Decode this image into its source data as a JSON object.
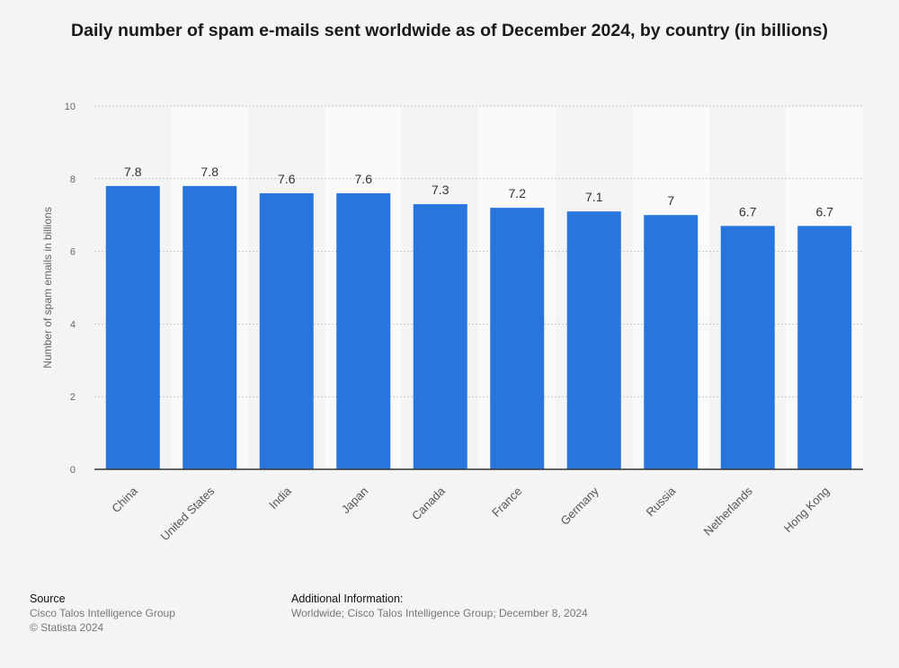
{
  "chart_data": {
    "type": "bar",
    "title": "Daily number of spam e-mails sent worldwide as of December 2024, by country (in billions)",
    "xlabel": "",
    "ylabel": "Number of spam emails in billions",
    "ylim": [
      0,
      10
    ],
    "yticks": [
      0,
      2,
      4,
      6,
      8,
      10
    ],
    "grid": true,
    "categories": [
      "China",
      "United States",
      "India",
      "Japan",
      "Canada",
      "France",
      "Germany",
      "Russia",
      "Netherlands",
      "Hong Kong"
    ],
    "values": [
      7.8,
      7.8,
      7.6,
      7.6,
      7.3,
      7.2,
      7.1,
      7,
      6.7,
      6.7
    ],
    "value_labels": [
      "7.8",
      "7.8",
      "7.6",
      "7.6",
      "7.3",
      "7.2",
      "7.1",
      "7",
      "6.7",
      "6.7"
    ],
    "bar_color": "#2775dd"
  },
  "footer": {
    "source_heading": "Source",
    "source_lines": [
      "Cisco Talos Intelligence Group",
      "© Statista 2024"
    ],
    "info_heading": "Additional Information:",
    "info_text": "Worldwide; Cisco Talos Intelligence Group; December 8, 2024"
  }
}
